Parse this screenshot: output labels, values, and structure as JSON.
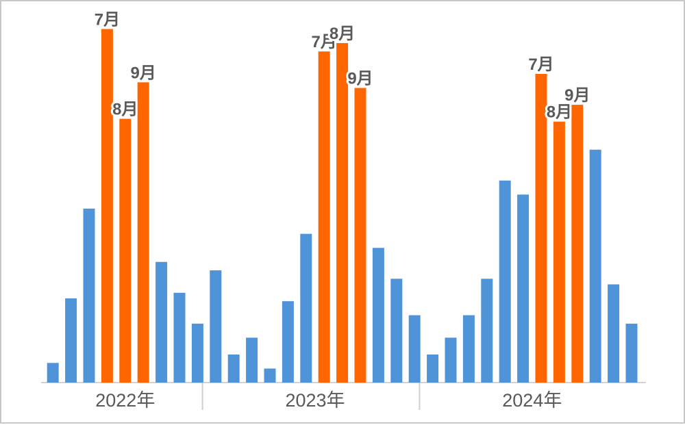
{
  "chart_data": {
    "type": "bar",
    "groups": [
      {
        "label": "2022年",
        "values": [
          7,
          30,
          62,
          126,
          94,
          107,
          43,
          32,
          21
        ],
        "highlight": [
          false,
          false,
          false,
          true,
          true,
          true,
          false,
          false,
          false
        ],
        "labels": [
          "",
          "",
          "",
          "7月",
          "8月",
          "9月",
          "",
          "",
          ""
        ]
      },
      {
        "label": "2023年",
        "values": [
          40,
          10,
          16,
          5,
          29,
          53,
          118,
          121,
          105,
          48,
          37,
          24
        ],
        "highlight": [
          false,
          false,
          false,
          false,
          false,
          false,
          true,
          true,
          true,
          false,
          false,
          false
        ],
        "labels": [
          "",
          "",
          "",
          "",
          "",
          "",
          "7月",
          "8月",
          "9月",
          "",
          "",
          ""
        ]
      },
      {
        "label": "2024年",
        "values": [
          10,
          16,
          24,
          37,
          72,
          67,
          110,
          93,
          99,
          83,
          35,
          21
        ],
        "highlight": [
          false,
          false,
          false,
          false,
          false,
          false,
          true,
          true,
          true,
          false,
          false,
          false
        ],
        "labels": [
          "",
          "",
          "",
          "",
          "",
          "",
          "7月",
          "8月",
          "9月",
          "",
          "",
          ""
        ]
      }
    ],
    "ylim": [
      0,
      130
    ],
    "colors": {
      "normal": "#4F94D9",
      "highlight": "#FF6600"
    },
    "grid": false,
    "legend": "none"
  }
}
